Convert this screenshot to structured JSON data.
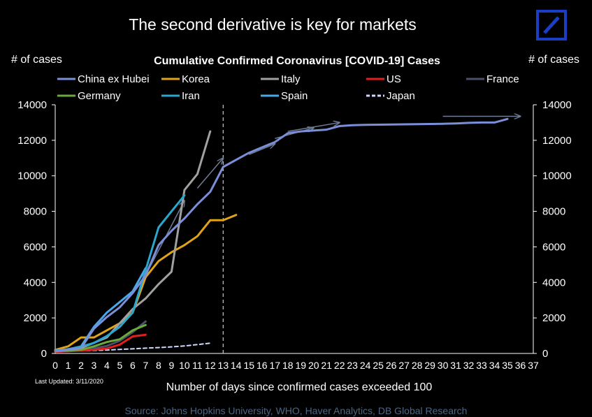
{
  "page_title": "The second derivative is key for markets",
  "footer": {
    "source": "Source: Johns Hopkins University, WHO, Haver Analytics, DB Global Research"
  },
  "colors": {
    "background": "#000000",
    "logo_blue": "#1b3ec7"
  },
  "chart_data": {
    "type": "line",
    "title": "Cumulative Confirmed Coronavirus [COVID-19] Cases",
    "ylabel_left": "# of cases",
    "ylabel_right": "# of cases",
    "xlabel": "Number of days since confirmed cases exceeded 100",
    "note": "Last Updated: 3/11/2020",
    "ylim": [
      0,
      14000
    ],
    "yticks": [
      0,
      2000,
      4000,
      6000,
      8000,
      10000,
      12000,
      14000
    ],
    "xlim": [
      0,
      37
    ],
    "xticks": [
      0,
      1,
      2,
      3,
      4,
      5,
      6,
      7,
      8,
      9,
      10,
      11,
      12,
      13,
      14,
      15,
      16,
      17,
      18,
      19,
      20,
      21,
      22,
      23,
      24,
      25,
      26,
      27,
      28,
      29,
      30,
      31,
      32,
      33,
      34,
      35,
      36,
      37
    ],
    "grid": false,
    "legend_position": "top",
    "vertical_marker_x": 13,
    "series": [
      {
        "name": "China ex Hubei",
        "color": "#7b8fd9",
        "dash": false,
        "width": 3,
        "x": [
          0,
          1,
          2,
          3,
          4,
          5,
          6,
          7,
          8,
          9,
          10,
          11,
          12,
          13,
          14,
          15,
          16,
          17,
          18,
          19,
          20,
          21,
          22,
          23,
          24,
          25,
          26,
          27,
          28,
          29,
          30,
          31,
          32,
          33,
          34,
          35
        ],
        "values": [
          130,
          220,
          300,
          1400,
          2050,
          2600,
          3400,
          4400,
          6100,
          6900,
          7600,
          8400,
          9100,
          10500,
          10900,
          11300,
          11600,
          11900,
          12400,
          12500,
          12550,
          12600,
          12800,
          12850,
          12870,
          12880,
          12890,
          12900,
          12910,
          12920,
          12930,
          12950,
          12980,
          13000,
          13000,
          13200
        ]
      },
      {
        "name": "Korea",
        "color": "#e0a418",
        "dash": false,
        "width": 3,
        "x": [
          0,
          1,
          2,
          3,
          4,
          5,
          6,
          7,
          8,
          9,
          10,
          11,
          12,
          13,
          14
        ],
        "values": [
          200,
          400,
          900,
          900,
          1300,
          1700,
          2300,
          4300,
          5200,
          5700,
          6100,
          6600,
          7500,
          7500,
          7800
        ]
      },
      {
        "name": "Italy",
        "color": "#a0a0a0",
        "dash": false,
        "width": 3,
        "x": [
          0,
          1,
          2,
          3,
          4,
          5,
          6,
          7,
          8,
          9,
          10,
          11,
          12
        ],
        "values": [
          150,
          200,
          300,
          600,
          900,
          1700,
          2500,
          3100,
          3900,
          4600,
          9200,
          10100,
          12500
        ]
      },
      {
        "name": "US",
        "color": "#e02020",
        "dash": false,
        "width": 3,
        "x": [
          0,
          1,
          2,
          3,
          4,
          5,
          6,
          7
        ],
        "values": [
          100,
          130,
          160,
          210,
          280,
          500,
          960,
          1050
        ]
      },
      {
        "name": "France",
        "color": "#4a5068",
        "dash": false,
        "width": 3,
        "x": [
          0,
          1,
          2,
          3,
          4,
          5,
          6,
          7
        ],
        "values": [
          100,
          130,
          190,
          290,
          420,
          710,
          1200,
          1800
        ]
      },
      {
        "name": "Germany",
        "color": "#6aaa3a",
        "dash": false,
        "width": 3,
        "x": [
          0,
          1,
          2,
          3,
          4,
          5,
          6,
          7
        ],
        "values": [
          130,
          160,
          200,
          400,
          640,
          800,
          1300,
          1600
        ]
      },
      {
        "name": "Iran",
        "color": "#2ba6cf",
        "dash": false,
        "width": 3,
        "x": [
          0,
          1,
          2,
          3,
          4,
          5,
          6,
          7,
          8,
          9,
          10
        ],
        "values": [
          140,
          245,
          390,
          590,
          980,
          1500,
          2300,
          4700,
          7100,
          8000,
          8900
        ]
      },
      {
        "name": "Spain",
        "color": "#4aa7e8",
        "dash": false,
        "width": 3,
        "x": [
          0,
          1,
          2,
          3,
          4,
          5,
          6,
          7
        ],
        "values": [
          160,
          220,
          400,
          1500,
          2300,
          2900,
          3500,
          4800
        ]
      },
      {
        "name": "Japan",
        "color": "#d0d8ff",
        "dash": true,
        "width": 2,
        "x": [
          0,
          1,
          2,
          3,
          4,
          5,
          6,
          7,
          8,
          9,
          10,
          11,
          12
        ],
        "values": [
          100,
          130,
          150,
          170,
          190,
          230,
          260,
          300,
          330,
          370,
          420,
          500,
          580
        ]
      }
    ],
    "trend_arrows": [
      {
        "x1": 7,
        "y1": 4400,
        "x2": 10,
        "y2": 8600
      },
      {
        "x1": 11,
        "y1": 9300,
        "x2": 13,
        "y2": 11000
      },
      {
        "x1": 15,
        "y1": 11200,
        "x2": 17,
        "y2": 11800
      },
      {
        "x1": 17,
        "y1": 12100,
        "x2": 20,
        "y2": 12700
      },
      {
        "x1": 18,
        "y1": 12500,
        "x2": 22,
        "y2": 13000
      },
      {
        "x1": 30,
        "y1": 13350,
        "x2": 36,
        "y2": 13350
      }
    ]
  }
}
